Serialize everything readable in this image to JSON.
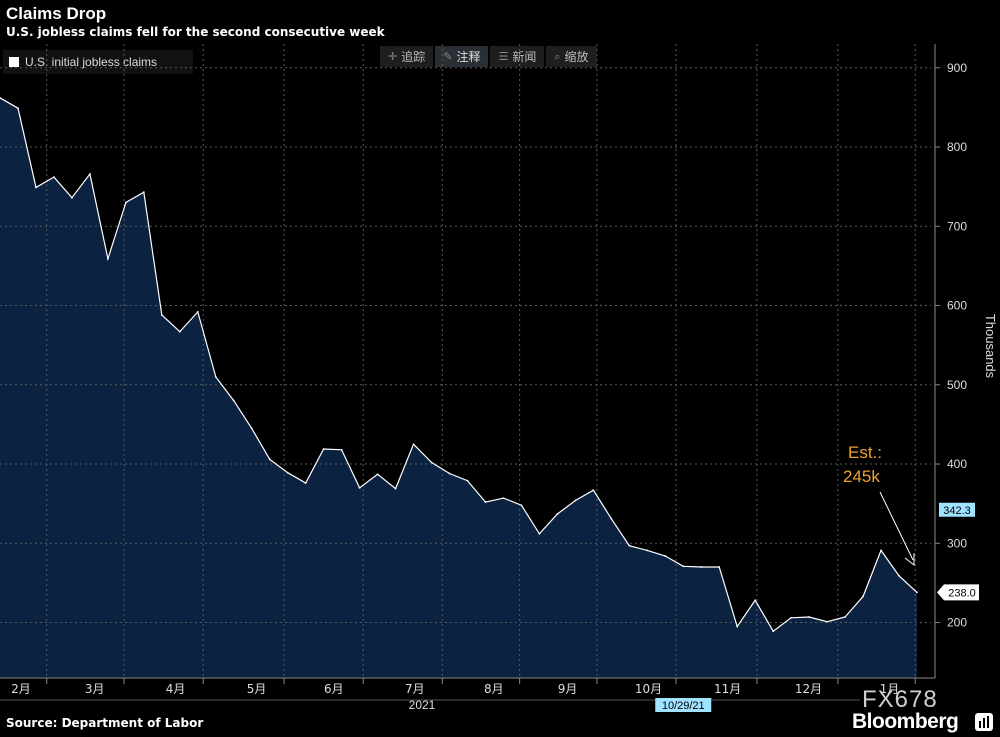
{
  "header": {
    "title": "Claims Drop",
    "subtitle": "U.S. jobless claims fell for the second consecutive week"
  },
  "toolbar": {
    "items": [
      {
        "label": "追踪",
        "icon": "crosshair-icon"
      },
      {
        "label": "注释",
        "icon": "pencil-icon"
      },
      {
        "label": "新闻",
        "icon": "news-icon"
      },
      {
        "label": "缩放",
        "icon": "zoom-icon"
      }
    ]
  },
  "footer": {
    "source": "Source: Department of Labor",
    "brand": "Bloomberg",
    "watermark": "FX678"
  },
  "annotation": {
    "line1": "Est.:",
    "line2": "245k"
  },
  "chart_data": {
    "type": "area",
    "legend": [
      "U.S. initial jobless claims"
    ],
    "legend_position": "top-left",
    "ylabel": "Thousands",
    "ylim": [
      130,
      930
    ],
    "yticks": [
      200,
      300,
      400,
      500,
      600,
      700,
      800,
      900
    ],
    "grid": true,
    "year_label": "2021",
    "x_month_labels": [
      "2月",
      "3月",
      "4月",
      "5月",
      "6月",
      "7月",
      "8月",
      "9月",
      "10月",
      "11月",
      "12月",
      "1月"
    ],
    "x_month_positions": [
      0.5,
      4.6,
      9.1,
      13.6,
      17.9,
      22.4,
      26.8,
      30.9,
      35.4,
      39.8,
      44.3,
      48.8
    ],
    "highlight_tags": [
      {
        "label": "342.3",
        "value": 342.3
      },
      {
        "label": "238.0",
        "value": 238.0
      }
    ],
    "date_tag": {
      "label": "10/29/21",
      "index": 38
    },
    "series": [
      {
        "name": "U.S. initial jobless claims",
        "color": "#ffffff",
        "fill": "#0b2240",
        "values": [
          862,
          849,
          749,
          762,
          736,
          766,
          659,
          730,
          743,
          588,
          567,
          592,
          510,
          480,
          445,
          406,
          389,
          376,
          419,
          418,
          370,
          387,
          369,
          425,
          402,
          388,
          379,
          352,
          357,
          348,
          312,
          337,
          354,
          367,
          331,
          297,
          291,
          284,
          271,
          270,
          270,
          195,
          228,
          189,
          206,
          207,
          201,
          207,
          233,
          291,
          259,
          238
        ]
      }
    ]
  }
}
